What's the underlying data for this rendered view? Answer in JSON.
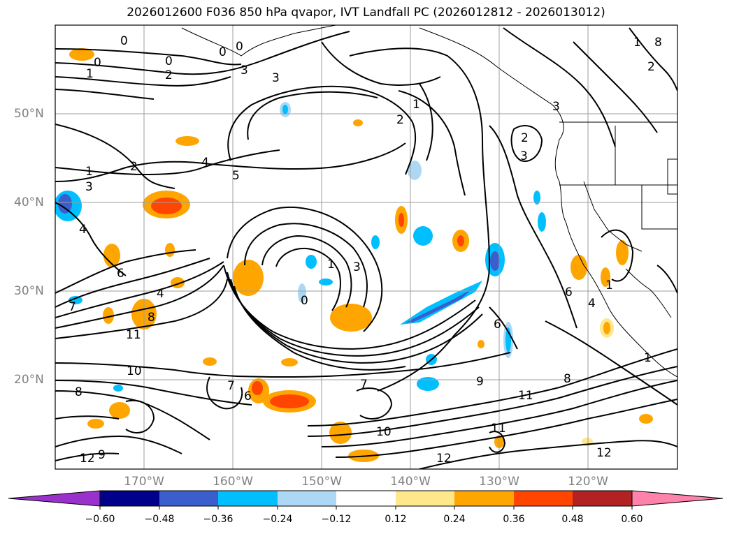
{
  "title": "2026012600 F036 850 hPa qvapor, IVT Landfall PC (2026012812 - 2026013012)",
  "map": {
    "lon_range": [
      -180,
      -110
    ],
    "lat_range": [
      10,
      60
    ],
    "lat_labels": [
      "50°N",
      "40°N",
      "30°N",
      "20°N"
    ],
    "lon_labels": [
      "170°W",
      "160°W",
      "150°W",
      "140°W",
      "130°W",
      "120°W"
    ],
    "grid": true
  },
  "contours": {
    "color": "#000000",
    "labels": [
      "0",
      "0",
      "0",
      "0",
      "0",
      "1",
      "1",
      "2",
      "3",
      "3",
      "2",
      "1",
      "2",
      "8",
      "3",
      "2",
      "4",
      "5",
      "2",
      "1",
      "3",
      "4",
      "3",
      "6",
      "4",
      "7",
      "8",
      "11",
      "1",
      "0",
      "3",
      "10",
      "6",
      "7",
      "8",
      "12",
      "7",
      "6",
      "9",
      "8",
      "11",
      "10",
      "11",
      "12",
      "12",
      "1",
      "6",
      "4",
      "9",
      "1"
    ]
  },
  "colorbar": {
    "ticks": [
      "−0.60",
      "−0.48",
      "−0.36",
      "−0.24",
      "−0.12",
      "0.12",
      "0.24",
      "0.36",
      "0.48",
      "0.60"
    ],
    "colors": [
      "#9932cc",
      "#00008b",
      "#3a5fcd",
      "#00bfff",
      "#add8f5",
      "#ffffff",
      "#ffe88a",
      "#ffa500",
      "#ff4500",
      "#b22222",
      "#ff82ab"
    ],
    "extend": "both"
  }
}
